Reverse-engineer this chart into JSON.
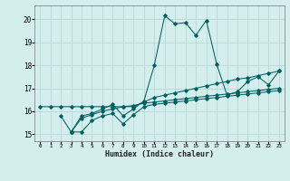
{
  "xlabel": "Humidex (Indice chaleur)",
  "background_color": "#d4eeed",
  "grid_color": "#b8d8d5",
  "line_color": "#006060",
  "xlim": [
    -0.5,
    23.5
  ],
  "ylim": [
    14.7,
    20.6
  ],
  "yticks": [
    15,
    16,
    17,
    18,
    19,
    20
  ],
  "xticks": [
    0,
    1,
    2,
    3,
    4,
    5,
    6,
    7,
    8,
    9,
    10,
    11,
    12,
    13,
    14,
    15,
    16,
    17,
    18,
    19,
    20,
    21,
    22,
    23
  ],
  "series": [
    {
      "x": [
        0,
        1,
        2,
        3,
        4,
        5,
        6,
        7,
        8,
        9,
        10,
        11,
        12,
        13,
        14,
        15,
        16,
        17,
        18,
        19,
        20,
        21,
        22,
        23
      ],
      "y": [
        16.2,
        16.2,
        16.2,
        16.2,
        16.2,
        16.2,
        16.2,
        16.2,
        16.2,
        16.2,
        16.4,
        16.6,
        16.7,
        16.8,
        16.9,
        17.0,
        17.1,
        17.2,
        17.3,
        17.4,
        17.45,
        17.55,
        17.65,
        17.75
      ]
    },
    {
      "x": [
        2,
        3,
        4,
        5,
        6,
        7,
        8,
        9,
        10,
        11,
        12,
        13,
        14,
        15,
        16,
        17,
        18,
        19,
        20,
        21,
        22,
        23
      ],
      "y": [
        15.8,
        15.1,
        15.8,
        15.9,
        16.1,
        16.3,
        15.8,
        16.1,
        16.45,
        18.0,
        20.15,
        19.8,
        19.85,
        19.3,
        19.95,
        18.05,
        16.7,
        16.85,
        17.3,
        17.5,
        17.15,
        17.75
      ]
    },
    {
      "x": [
        3,
        4,
        5,
        6,
        7,
        8,
        9,
        10,
        11,
        12,
        13,
        14,
        15,
        16,
        17,
        18,
        19,
        20,
        21,
        22,
        23
      ],
      "y": [
        15.1,
        15.7,
        15.85,
        16.0,
        16.1,
        16.2,
        16.25,
        16.35,
        16.4,
        16.45,
        16.5,
        16.55,
        16.6,
        16.65,
        16.7,
        16.75,
        16.8,
        16.85,
        16.9,
        16.95,
        17.0
      ]
    },
    {
      "x": [
        3,
        4,
        5,
        6,
        7,
        8,
        9,
        10,
        11,
        12,
        13,
        14,
        15,
        16,
        17,
        18,
        19,
        20,
        21,
        22,
        23
      ],
      "y": [
        15.1,
        15.1,
        15.6,
        15.8,
        15.9,
        15.45,
        15.85,
        16.2,
        16.3,
        16.35,
        16.4,
        16.45,
        16.5,
        16.55,
        16.6,
        16.65,
        16.7,
        16.75,
        16.8,
        16.85,
        16.9
      ]
    }
  ]
}
